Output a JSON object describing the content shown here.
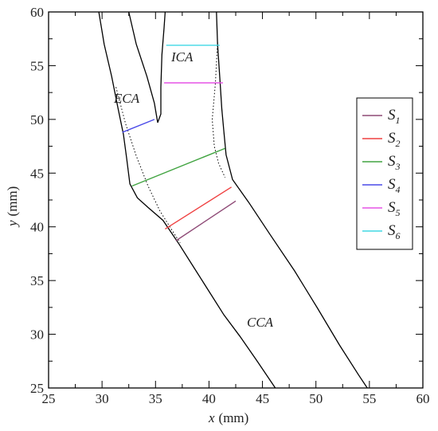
{
  "chart_data": {
    "type": "line",
    "xlabel": "x (mm)",
    "ylabel": "y (mm)",
    "xlabel_var": "x",
    "xlabel_unit": "(mm)",
    "ylabel_var": "y",
    "ylabel_unit": "(mm)",
    "xlim": [
      25,
      60
    ],
    "ylim": [
      25,
      60
    ],
    "xticks": [
      25,
      30,
      35,
      40,
      45,
      50,
      55,
      60
    ],
    "yticks": [
      25,
      30,
      35,
      40,
      45,
      50,
      55,
      60
    ],
    "grid": false,
    "legend_position": "right",
    "region_labels": [
      {
        "text": "ICA",
        "x": 36.9,
        "y": 56.4
      },
      {
        "text": "ECA",
        "x": 31.5,
        "y": 51.6
      },
      {
        "text": "CCA",
        "x": 45.1,
        "y": 32.5
      }
    ],
    "outer_wall_left": [
      [
        29.7,
        60
      ],
      [
        30.2,
        57
      ],
      [
        30.9,
        54
      ],
      [
        31.5,
        51
      ],
      [
        32.0,
        48.6
      ],
      [
        32.3,
        46.4
      ],
      [
        32.6,
        44.0
      ],
      [
        33.3,
        42.7
      ],
      [
        34.3,
        41.8
      ],
      [
        35.7,
        40.6
      ],
      [
        37.2,
        38.4
      ],
      [
        38.6,
        36.2
      ],
      [
        40.0,
        34.0
      ],
      [
        41.4,
        31.8
      ],
      [
        42.9,
        29.8
      ],
      [
        44.5,
        27.5
      ],
      [
        46.2,
        25
      ]
    ],
    "outer_wall_right": [
      [
        40.7,
        60
      ],
      [
        40.8,
        57
      ],
      [
        41.0,
        54
      ],
      [
        41.2,
        51
      ],
      [
        41.4,
        48.8
      ],
      [
        41.6,
        46.7
      ],
      [
        42.2,
        44.4
      ],
      [
        43.7,
        42.3
      ],
      [
        45.7,
        39.3
      ],
      [
        48.0,
        35.9
      ],
      [
        50.1,
        32.5
      ],
      [
        52.2,
        29.0
      ],
      [
        54.0,
        26.2
      ],
      [
        54.8,
        25
      ]
    ],
    "eca_inner_wall": [
      [
        32.5,
        60
      ],
      [
        33.2,
        57
      ],
      [
        34.2,
        54
      ],
      [
        34.9,
        51.5
      ],
      [
        35.2,
        49.7
      ]
    ],
    "ica_inner_wall": [
      [
        35.2,
        49.7
      ],
      [
        35.5,
        50.5
      ],
      [
        35.5,
        53
      ],
      [
        35.6,
        56
      ],
      [
        35.8,
        58.5
      ],
      [
        35.9,
        60
      ]
    ],
    "dotted_left": [
      [
        31.3,
        53
      ],
      [
        32.2,
        49.6
      ],
      [
        33.2,
        46.6
      ],
      [
        34.3,
        43.8
      ],
      [
        35.4,
        41.5
      ],
      [
        36.4,
        39.9
      ],
      [
        37.3,
        38.5
      ]
    ],
    "dotted_right": [
      [
        40.8,
        57.2
      ],
      [
        40.6,
        53.4
      ],
      [
        40.3,
        50
      ],
      [
        40.5,
        47.5
      ],
      [
        40.9,
        45.9
      ],
      [
        41.5,
        44.6
      ]
    ],
    "series": [
      {
        "name": "S1",
        "label_main": "S",
        "label_sub": "1",
        "color": "#8e4a76",
        "x": [
          36.9,
          42.5
        ],
        "y": [
          38.7,
          42.4
        ]
      },
      {
        "name": "S2",
        "label_main": "S",
        "label_sub": "2",
        "color": "#ef4141",
        "x": [
          35.9,
          42.1
        ],
        "y": [
          39.8,
          43.7
        ]
      },
      {
        "name": "S3",
        "label_main": "S",
        "label_sub": "3",
        "color": "#41a441",
        "x": [
          32.8,
          41.5
        ],
        "y": [
          43.8,
          47.3
        ]
      },
      {
        "name": "S4",
        "label_main": "S",
        "label_sub": "4",
        "color": "#4a4ae8",
        "x": [
          31.9,
          34.9
        ],
        "y": [
          48.8,
          50.0
        ]
      },
      {
        "name": "S5",
        "label_main": "S",
        "label_sub": "5",
        "color": "#e554e5",
        "x": [
          35.8,
          41.3
        ],
        "y": [
          53.4,
          53.4
        ]
      },
      {
        "name": "S6",
        "label_main": "S",
        "label_sub": "6",
        "color": "#41d8e4",
        "x": [
          36.0,
          41.0
        ],
        "y": [
          56.9,
          56.9
        ]
      }
    ]
  }
}
